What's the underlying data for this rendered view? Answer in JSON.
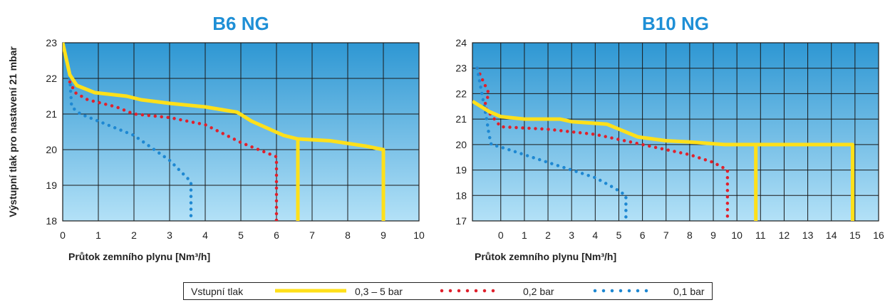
{
  "y_axis_label": "Výstupní tlak pro nastavení 21 mbar",
  "legend": {
    "title": "Vstupní tlak",
    "items": [
      {
        "label": "0,3 – 5 bar",
        "color": "#FFE01A",
        "style": "solid"
      },
      {
        "label": "0,2 bar",
        "color": "#E0202C",
        "style": "dotted"
      },
      {
        "label": "0,1 bar",
        "color": "#1E88D2",
        "style": "dotted"
      }
    ]
  },
  "chart_data": [
    {
      "type": "line",
      "title": "B6 NG",
      "xlabel": "Průtok zemního plynu [Nm³/h]",
      "xlim": [
        0,
        10
      ],
      "ylim": [
        18,
        23
      ],
      "xticks": [
        "0",
        "1",
        "2",
        "3",
        "4",
        "5",
        "6",
        "7",
        "8",
        "9",
        "10"
      ],
      "yticks": [
        "18",
        "19",
        "20",
        "21",
        "22",
        "23"
      ],
      "grid": true,
      "series": [
        {
          "name": "0,3 – 5 bar",
          "color": "#FFE01A",
          "style": "solid",
          "x": [
            0,
            0.2,
            0.4,
            0.9,
            1.8,
            2.2,
            3,
            4,
            4.9,
            5.3,
            6.2,
            6.6,
            7.5,
            8.5,
            9,
            9
          ],
          "y": [
            23,
            22.1,
            21.8,
            21.6,
            21.5,
            21.4,
            21.3,
            21.2,
            21.05,
            20.8,
            20.4,
            20.3,
            20.25,
            20.1,
            20,
            18
          ],
          "segments": [
            {
              "x": [
                6.6,
                6.6
              ],
              "y": [
                20.3,
                18
              ]
            }
          ]
        },
        {
          "name": "0,2 bar",
          "color": "#E0202C",
          "style": "dotted",
          "x": [
            0.2,
            0.35,
            0.7,
            1.5,
            2,
            3,
            4,
            5,
            6,
            6
          ],
          "y": [
            21.9,
            21.6,
            21.4,
            21.2,
            21,
            20.9,
            20.7,
            20.2,
            19.8,
            18
          ]
        },
        {
          "name": "0,1 bar",
          "color": "#1E88D2",
          "style": "dotted",
          "x": [
            0.2,
            0.25,
            0.5,
            1.5,
            2,
            3,
            3.5,
            3.6,
            3.6
          ],
          "y": [
            22,
            21.2,
            21,
            20.6,
            20.4,
            19.7,
            19.2,
            19.1,
            18
          ]
        }
      ]
    },
    {
      "type": "line",
      "title": "B10 NG",
      "xlabel": "Průtok zemního plynu [Nm³/h]",
      "xlim": [
        -1.2,
        16
      ],
      "ylim": [
        17,
        24
      ],
      "xticks": [
        "0",
        "1",
        "2",
        "3",
        "4",
        "5",
        "6",
        "7",
        "8",
        "9",
        "10",
        "11",
        "12",
        "13",
        "14",
        "15",
        "16"
      ],
      "yticks": [
        "17",
        "18",
        "19",
        "20",
        "21",
        "22",
        "23",
        "24"
      ],
      "grid": true,
      "series": [
        {
          "name": "0,3 – 5 bar",
          "color": "#FFE01A",
          "style": "solid",
          "x": [
            -1.2,
            -0.5,
            0,
            1,
            2.5,
            3,
            4.5,
            5.8,
            7,
            8,
            9.5,
            10.8,
            14.9,
            14.9
          ],
          "y": [
            21.7,
            21.3,
            21.1,
            21,
            21,
            20.9,
            20.8,
            20.3,
            20.15,
            20.1,
            20,
            20,
            20,
            17
          ],
          "segments": [
            {
              "x": [
                10.8,
                10.8
              ],
              "y": [
                20,
                17
              ]
            }
          ]
        },
        {
          "name": "0,2 bar",
          "color": "#E0202C",
          "style": "dotted",
          "x": [
            -1,
            -0.75,
            -0.5,
            -0.7,
            -0.45,
            0,
            1,
            2,
            3,
            4,
            5,
            6,
            7,
            8,
            9,
            9.6,
            9.6
          ],
          "y": [
            23,
            22.5,
            22,
            21.5,
            21.2,
            20.7,
            20.65,
            20.6,
            20.5,
            20.4,
            20.2,
            20,
            19.8,
            19.6,
            19.3,
            19,
            17
          ],
          "segments": []
        },
        {
          "name": "0,1 bar",
          "color": "#1E88D2",
          "style": "dotted",
          "x": [
            -1,
            -0.8,
            -0.7,
            -0.6,
            -0.5,
            -0.4,
            0,
            1,
            2,
            3,
            4,
            4.8,
            5.3,
            5.3
          ],
          "y": [
            23,
            22,
            21.5,
            21,
            20.4,
            20,
            19.9,
            19.6,
            19.3,
            19,
            18.7,
            18.3,
            18,
            17
          ],
          "segments": []
        }
      ]
    }
  ]
}
